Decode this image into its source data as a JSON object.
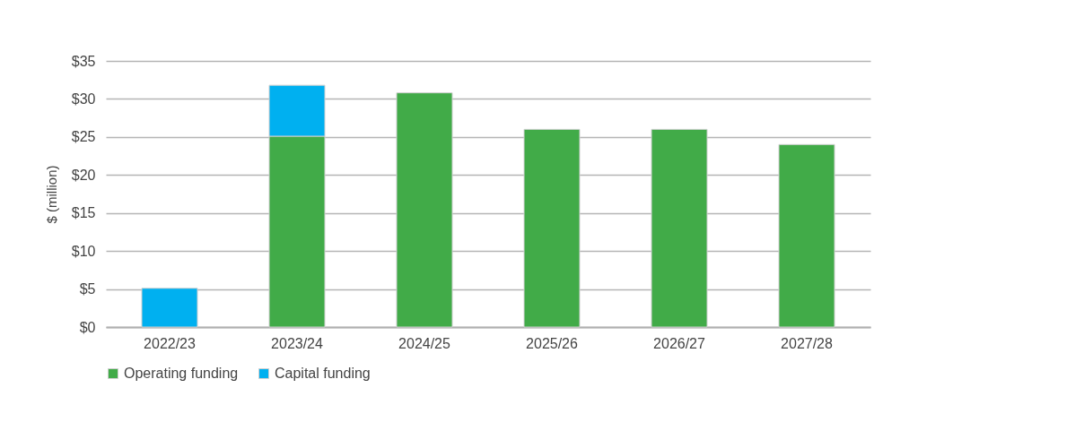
{
  "chart_data": {
    "type": "bar",
    "stacked": true,
    "ylabel": "$ (million)",
    "categories": [
      "2022/23",
      "2023/24",
      "2024/25",
      "2025/26",
      "2026/27",
      "2027/28"
    ],
    "series": [
      {
        "name": "Operating funding",
        "color": "#41ab48",
        "values": [
          null,
          25.1,
          30.8,
          26.0,
          26.0,
          24.0
        ]
      },
      {
        "name": "Capital funding",
        "color": "#00b0f0",
        "values": [
          5.1,
          6.7,
          null,
          null,
          null,
          null
        ]
      }
    ],
    "ylim": [
      0,
      35
    ],
    "yticks": [
      {
        "value": 0,
        "label": "$0"
      },
      {
        "value": 5,
        "label": "$5"
      },
      {
        "value": 10,
        "label": "$10"
      },
      {
        "value": 15,
        "label": "$15"
      },
      {
        "value": 20,
        "label": "$20"
      },
      {
        "value": 25,
        "label": "$25"
      },
      {
        "value": 30,
        "label": "$30"
      },
      {
        "value": 35,
        "label": "$35"
      }
    ],
    "grid": "y",
    "legend": "bottom"
  }
}
